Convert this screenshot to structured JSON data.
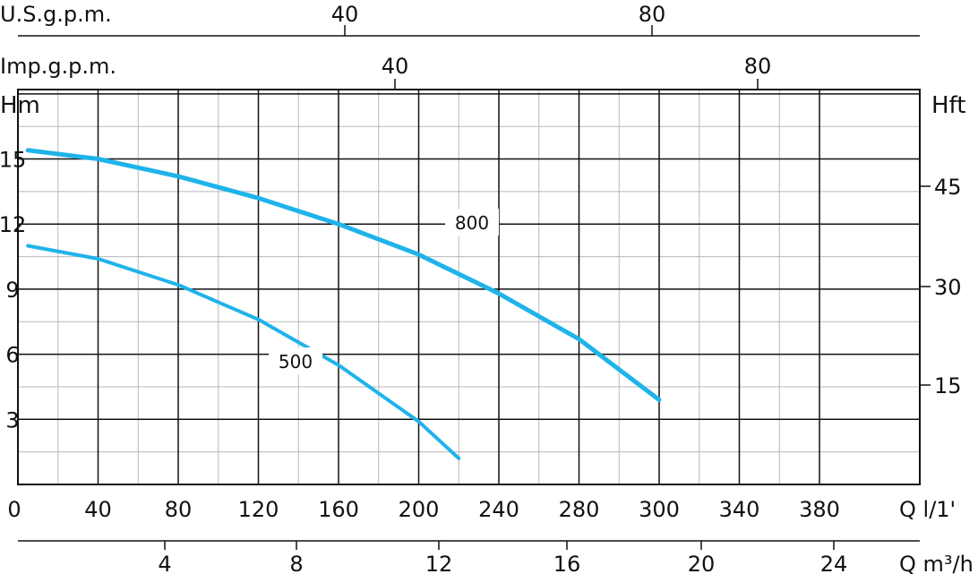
{
  "chart_data": {
    "type": "line",
    "title": "",
    "colors": {
      "curve": "#1fb3ea",
      "grid_major": "#111111",
      "grid_minor": "#b8b8b8"
    },
    "axes": {
      "left": {
        "label": "Hm",
        "ticks": [
          "3",
          "6",
          "9",
          "12",
          "15"
        ],
        "range": [
          0,
          18.2
        ]
      },
      "right": {
        "label": "Hft",
        "ticks": [
          "15",
          "30",
          "45"
        ]
      },
      "bottom_lpm": {
        "label": "Q  l/1'",
        "origin_label": "0",
        "ticks": [
          "40",
          "80",
          "120",
          "160",
          "200",
          "240",
          "280",
          "300",
          "340",
          "380"
        ],
        "range": [
          0,
          400
        ]
      },
      "bottom_m3h": {
        "label": "Q  m³/h",
        "ticks": [
          "4",
          "8",
          "12",
          "16",
          "20",
          "24"
        ]
      },
      "top_usgpm": {
        "label": "U.S.g.p.m.",
        "ticks": [
          "40",
          "80"
        ]
      },
      "top_impgpm": {
        "label": "Imp.g.p.m.",
        "ticks": [
          "40",
          "80"
        ]
      }
    },
    "series": [
      {
        "name": "800",
        "x": [
          5,
          40,
          80,
          120,
          160,
          200,
          240,
          280,
          320
        ],
        "y": [
          15.4,
          15.0,
          14.2,
          13.2,
          12.0,
          10.6,
          8.8,
          6.7,
          3.9
        ]
      },
      {
        "name": "500",
        "x": [
          5,
          40,
          80,
          120,
          160,
          200,
          220
        ],
        "y": [
          11.0,
          10.4,
          9.2,
          7.6,
          5.5,
          2.9,
          1.2
        ]
      }
    ]
  }
}
